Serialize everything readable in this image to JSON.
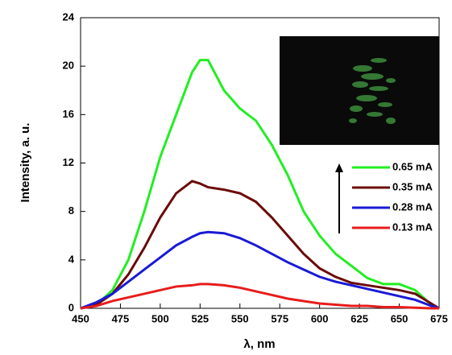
{
  "chart_data": {
    "type": "line",
    "xlabel": "λ, nm",
    "ylabel": "Intensity, a. u.",
    "x": [
      450,
      460,
      470,
      480,
      490,
      500,
      510,
      520,
      525,
      530,
      540,
      550,
      560,
      570,
      580,
      590,
      600,
      610,
      620,
      630,
      640,
      650,
      660,
      670,
      675
    ],
    "series": [
      {
        "name": "0.65 mA",
        "color": "#22ee22",
        "values": [
          0,
          0.3,
          1.5,
          4,
          8,
          12.5,
          16,
          19.5,
          20.5,
          20.5,
          18,
          16.5,
          15.5,
          13.5,
          11,
          8,
          6,
          4.5,
          3.5,
          2.5,
          2,
          2,
          1.5,
          0.3,
          0
        ]
      },
      {
        "name": "0.35 mA",
        "color": "#6b0a0a",
        "values": [
          0,
          0.3,
          1.2,
          2.8,
          5,
          7.5,
          9.5,
          10.5,
          10.3,
          10,
          9.8,
          9.5,
          8.8,
          7.5,
          6,
          4.5,
          3.3,
          2.6,
          2.1,
          1.9,
          1.7,
          1.5,
          1.2,
          0.4,
          0
        ]
      },
      {
        "name": "0.28 mA",
        "color": "#1a1ad6",
        "values": [
          0,
          0.5,
          1.2,
          2.2,
          3.2,
          4.2,
          5.2,
          5.9,
          6.2,
          6.3,
          6.2,
          5.8,
          5.2,
          4.5,
          3.8,
          3.2,
          2.6,
          2.2,
          1.9,
          1.6,
          1.3,
          1,
          0.7,
          0.2,
          0
        ]
      },
      {
        "name": "0.13 mA",
        "color": "#e81c1c",
        "values": [
          0,
          0.2,
          0.6,
          0.9,
          1.2,
          1.5,
          1.8,
          1.9,
          2,
          2,
          1.9,
          1.7,
          1.4,
          1.1,
          0.8,
          0.6,
          0.4,
          0.3,
          0.2,
          0.2,
          0.1,
          0.1,
          0.05,
          0,
          0
        ]
      }
    ],
    "xlim": [
      450,
      675
    ],
    "xticks": [
      450,
      475,
      500,
      525,
      550,
      575,
      600,
      625,
      650,
      675
    ],
    "ylim": [
      0,
      24
    ],
    "yticks": [
      0,
      4,
      8,
      12,
      16,
      20,
      24
    ]
  }
}
